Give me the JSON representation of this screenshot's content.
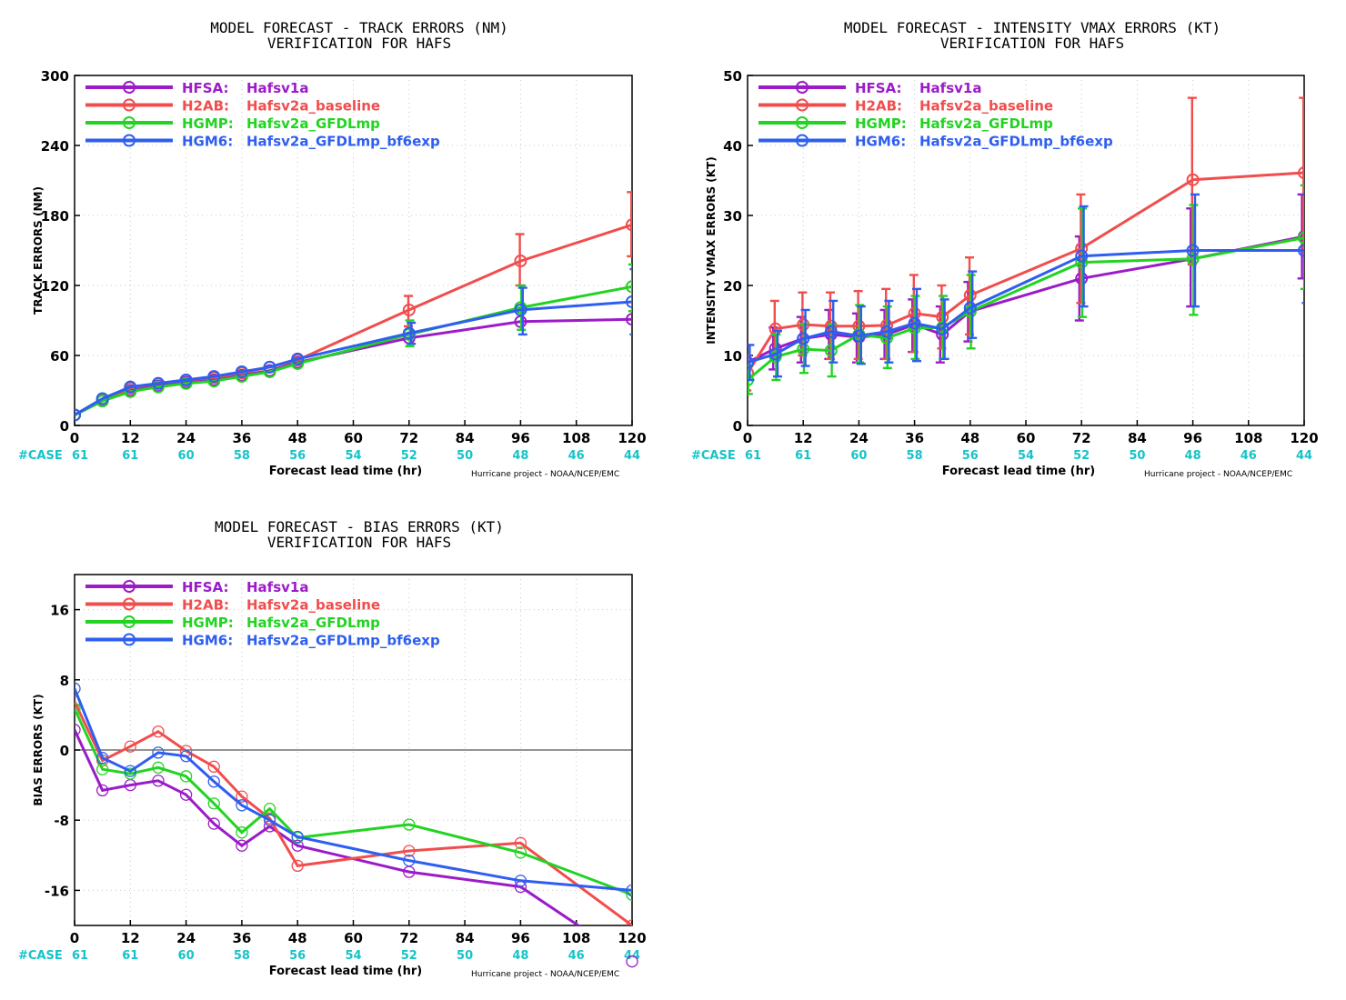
{
  "colors": {
    "HFSA": "#9b1bc8",
    "H2AB": "#f14d4d",
    "HGMP": "#22d322",
    "HGM6": "#2e5ef0",
    "case": "#17c3c8",
    "grid": "#c8c8c8"
  },
  "x_label": "Forecast lead time (hr)",
  "credit": "Hurricane project - NOAA/NCEP/EMC",
  "case_prefix": "#CASE",
  "x_ticks": [
    0,
    12,
    24,
    36,
    48,
    60,
    72,
    84,
    96,
    108,
    120
  ],
  "case_counts": [
    "61",
    "61",
    "60",
    "58",
    "56",
    "54",
    "52",
    "50",
    "48",
    "46",
    "44"
  ],
  "legend": [
    {
      "key": "HFSA",
      "label": "HFSA:",
      "desc": "Hafsv1a"
    },
    {
      "key": "H2AB",
      "label": "H2AB:",
      "desc": "Hafsv2a_baseline"
    },
    {
      "key": "HGMP",
      "label": "HGMP:",
      "desc": "Hafsv2a_GFDLmp"
    },
    {
      "key": "HGM6",
      "label": "HGM6:",
      "desc": "Hafsv2a_GFDLmp_bf6exp"
    }
  ],
  "chart_data": [
    {
      "type": "line",
      "title": "MODEL FORECAST - TRACK ERRORS (NM)",
      "subtitle": "VERIFICATION FOR HAFS",
      "xlabel": "Forecast lead time (hr)",
      "ylabel": "TRACK ERRORS (NM)",
      "xlim": [
        0,
        120
      ],
      "ylim": [
        0,
        300
      ],
      "yticks": [
        0,
        60,
        120,
        180,
        240,
        300
      ],
      "grid": true,
      "legend_position": "top-left",
      "x": [
        0,
        6,
        12,
        18,
        24,
        30,
        36,
        42,
        48,
        72,
        96,
        120
      ],
      "series": [
        {
          "key": "HFSA",
          "name": "HFSA: Hafsv1a",
          "values": [
            9,
            21,
            30,
            34,
            37,
            39,
            43,
            47,
            54,
            75,
            89,
            91
          ]
        },
        {
          "key": "H2AB",
          "name": "H2AB: Hafsv2a_baseline",
          "values": [
            9,
            22,
            32,
            36,
            39,
            41,
            45,
            50,
            56,
            99,
            141,
            172
          ],
          "err_low": [
            null,
            null,
            null,
            null,
            null,
            null,
            null,
            null,
            null,
            85,
            120,
            145
          ],
          "err_high": [
            null,
            null,
            null,
            null,
            null,
            null,
            null,
            null,
            null,
            111,
            164,
            200
          ]
        },
        {
          "key": "HGMP",
          "name": "HGMP: Hafsv2a_GFDLmp",
          "values": [
            9,
            21,
            29,
            33,
            36,
            38,
            42,
            46,
            53,
            78,
            101,
            119
          ],
          "err_low": [
            null,
            null,
            null,
            null,
            null,
            null,
            null,
            null,
            null,
            68,
            82,
            98
          ],
          "err_high": [
            null,
            null,
            null,
            null,
            null,
            null,
            null,
            null,
            null,
            90,
            120,
            138
          ]
        },
        {
          "key": "HGM6",
          "name": "HGM6: Hafsv2a_GFDLmp_bf6exp",
          "values": [
            9,
            23,
            33,
            36,
            39,
            42,
            46,
            50,
            57,
            79,
            99,
            106
          ],
          "err_low": [
            null,
            null,
            null,
            null,
            null,
            null,
            null,
            null,
            null,
            70,
            78,
            78
          ],
          "err_high": [
            null,
            null,
            null,
            null,
            null,
            null,
            null,
            null,
            null,
            88,
            118,
            134
          ]
        }
      ]
    },
    {
      "type": "line",
      "title": "MODEL FORECAST - INTENSITY VMAX ERRORS (KT)",
      "subtitle": "VERIFICATION FOR HAFS",
      "xlabel": "Forecast lead time (hr)",
      "ylabel": "INTENSITY VMAX ERRORS (KT)",
      "xlim": [
        0,
        120
      ],
      "ylim": [
        0,
        50
      ],
      "yticks": [
        0,
        10,
        20,
        30,
        40,
        50
      ],
      "grid": true,
      "legend_position": "top-left",
      "x": [
        0,
        6,
        12,
        18,
        24,
        30,
        36,
        42,
        48,
        72,
        96,
        120
      ],
      "series": [
        {
          "key": "HFSA",
          "name": "HFSA: Hafsv1a",
          "values": [
            9.0,
            11.0,
            12.4,
            13.0,
            12.6,
            13.0,
            14.4,
            13.0,
            16.3,
            21.0,
            23.8,
            27.0
          ],
          "err_low": [
            6.5,
            8,
            9,
            9.5,
            9,
            9.5,
            10.5,
            9,
            12,
            15,
            17,
            21
          ],
          "err_high": [
            11.5,
            14,
            15.5,
            16.5,
            16,
            16.5,
            18,
            17,
            20.5,
            27,
            31,
            33
          ]
        },
        {
          "key": "H2AB",
          "name": "H2AB: Hafsv2a_baseline",
          "values": [
            7.5,
            13.8,
            14.4,
            14.2,
            14.2,
            14.3,
            16.0,
            15.5,
            18.6,
            25.3,
            35.1,
            36.1
          ],
          "err_low": [
            5,
            9.5,
            10,
            9.5,
            9.5,
            9.5,
            10.5,
            11,
            13,
            17.5,
            23,
            25
          ],
          "err_high": [
            10,
            17.8,
            19,
            19,
            19.2,
            19.5,
            21.5,
            20,
            24,
            33,
            46.8,
            46.8
          ]
        },
        {
          "key": "HGMP",
          "name": "HGMP: Hafsv2a_GFDLmp",
          "values": [
            6.5,
            9.8,
            10.9,
            10.7,
            13.0,
            12.5,
            13.9,
            14.0,
            16.3,
            23.3,
            23.8,
            26.8
          ],
          "err_low": [
            4.5,
            6.5,
            7.5,
            7,
            9,
            8.2,
            9.5,
            9.5,
            11,
            15.5,
            15.8,
            19.5
          ],
          "err_high": [
            8.5,
            13,
            14.5,
            14.5,
            17.2,
            17,
            18.5,
            18.5,
            21.5,
            31,
            31.5,
            34.3
          ]
        },
        {
          "key": "HGM6",
          "name": "HGM6: Hafsv2a_GFDLmp_bf6exp",
          "values": [
            9.0,
            10.2,
            12.4,
            13.4,
            12.8,
            13.4,
            14.6,
            13.8,
            16.8,
            24.2,
            25.0,
            25.0
          ],
          "err_low": [
            6.5,
            7,
            8.5,
            9,
            8.8,
            9,
            9.2,
            9.5,
            12.5,
            17,
            17,
            17.5
          ],
          "err_high": [
            11.5,
            13.5,
            16.5,
            17.8,
            17,
            17.8,
            19.5,
            18,
            22,
            31.3,
            33,
            33
          ]
        }
      ]
    },
    {
      "type": "line",
      "title": "MODEL FORECAST - BIAS ERRORS (KT)",
      "subtitle": "VERIFICATION FOR HAFS",
      "xlabel": "Forecast lead time (hr)",
      "ylabel": "BIAS ERRORS (KT)",
      "xlim": [
        0,
        120
      ],
      "ylim": [
        -20,
        20
      ],
      "yticks": [
        -16,
        -8,
        0,
        8,
        16
      ],
      "grid": true,
      "zero_line": true,
      "legend_position": "top-left",
      "x": [
        0,
        6,
        12,
        18,
        24,
        30,
        36,
        42,
        48,
        72,
        96,
        120
      ],
      "series": [
        {
          "key": "HFSA",
          "name": "HFSA: Hafsv1a",
          "values": [
            2.3,
            -4.6,
            -4.0,
            -3.5,
            -5.1,
            -8.4,
            -10.9,
            -8.7,
            -10.9,
            -13.9,
            -15.6,
            -24.1
          ]
        },
        {
          "key": "H2AB",
          "name": "H2AB: Hafsv2a_baseline",
          "values": [
            5.5,
            -1.2,
            0.4,
            2.1,
            -0.1,
            -1.9,
            -5.3,
            -7.8,
            -13.2,
            -11.5,
            -10.6,
            -20.0
          ]
        },
        {
          "key": "HGMP",
          "name": "HGMP: Hafsv2a_GFDLmp",
          "values": [
            4.7,
            -2.2,
            -2.7,
            -2.0,
            -3.0,
            -6.1,
            -9.4,
            -6.7,
            -10.0,
            -8.5,
            -11.7,
            -16.5
          ]
        },
        {
          "key": "HGM6",
          "name": "HGM6: Hafsv2a_GFDLmp_bf6exp",
          "values": [
            7.0,
            -0.9,
            -2.4,
            -0.3,
            -0.7,
            -3.6,
            -6.3,
            -8.0,
            -9.9,
            -12.6,
            -14.9,
            -16.0
          ]
        }
      ]
    }
  ]
}
